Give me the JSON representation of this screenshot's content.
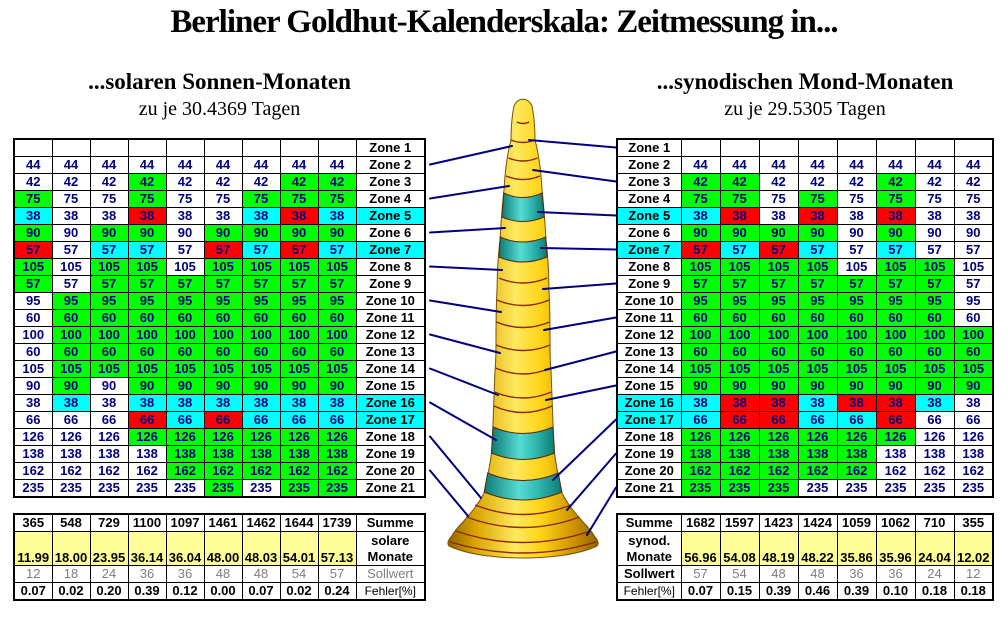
{
  "title": "Berliner Goldhut-Kalenderskala: Zeitmessung in...",
  "colors": {
    "codes": {
      "w": "#FFFFFF",
      "g": "#00FF00",
      "c": "#00FFFF",
      "r": "#FF0000"
    },
    "summary_yellow": "#FFFF99",
    "grid_number": "#00007F",
    "connector": "#000080",
    "cone_gold": "#FFD020",
    "cone_teal": "#2FB8B0"
  },
  "left_panel": {
    "heading": "...solaren Sonnen-Monaten",
    "subheading": "zu je 30.4369 Tagen",
    "rows": [
      {
        "zone": "Zone 1",
        "zone_bg": "w",
        "value": "",
        "bgs": "wwwwwwwww"
      },
      {
        "zone": "Zone 2",
        "zone_bg": "w",
        "value": "44",
        "bgs": "wwwwwwwww"
      },
      {
        "zone": "Zone 3",
        "zone_bg": "w",
        "value": "42",
        "bgs": "wwwgwwwgg"
      },
      {
        "zone": "Zone 4",
        "zone_bg": "w",
        "value": "75",
        "bgs": "gwwgwwggg"
      },
      {
        "zone": "Zone 5",
        "zone_bg": "c",
        "value": "38",
        "bgs": "cwwrwwcrc"
      },
      {
        "zone": "Zone 6",
        "zone_bg": "w",
        "value": "90",
        "bgs": "gwggwgggg"
      },
      {
        "zone": "Zone 7",
        "zone_bg": "c",
        "value": "57",
        "bgs": "rwccwrcrc"
      },
      {
        "zone": "Zone 8",
        "zone_bg": "w",
        "value": "105",
        "bgs": "gwggwgggg"
      },
      {
        "zone": "Zone 9",
        "zone_bg": "w",
        "value": "57",
        "bgs": "gwggggggg"
      },
      {
        "zone": "Zone 10",
        "zone_bg": "w",
        "value": "95",
        "bgs": "wgggggggg"
      },
      {
        "zone": "Zone 11",
        "zone_bg": "w",
        "value": "60",
        "bgs": "wgggggggg"
      },
      {
        "zone": "Zone 12",
        "zone_bg": "w",
        "value": "100",
        "bgs": "wgggggggg"
      },
      {
        "zone": "Zone 13",
        "zone_bg": "w",
        "value": "60",
        "bgs": "wgggggggg"
      },
      {
        "zone": "Zone 14",
        "zone_bg": "w",
        "value": "105",
        "bgs": "wgggggggg"
      },
      {
        "zone": "Zone 15",
        "zone_bg": "w",
        "value": "90",
        "bgs": "wgwgggggg"
      },
      {
        "zone": "Zone 16",
        "zone_bg": "c",
        "value": "38",
        "bgs": "wcwcccccc"
      },
      {
        "zone": "Zone 17",
        "zone_bg": "c",
        "value": "66",
        "bgs": "wwwrcrccc"
      },
      {
        "zone": "Zone 18",
        "zone_bg": "w",
        "value": "126",
        "bgs": "wwwgggggg"
      },
      {
        "zone": "Zone 19",
        "zone_bg": "w",
        "value": "138",
        "bgs": "wwwwggggg"
      },
      {
        "zone": "Zone 20",
        "zone_bg": "w",
        "value": "162",
        "bgs": "wwwwggggg"
      },
      {
        "zone": "Zone 21",
        "zone_bg": "w",
        "value": "235",
        "bgs": "wwwwwgwgg"
      }
    ],
    "summary": {
      "summe_label": "Summe",
      "summe_values": [
        "365",
        "548",
        "729",
        "1100",
        "1097",
        "1461",
        "1462",
        "1644",
        "1739"
      ],
      "monate_label_line1": "solare",
      "monate_label_line2": "Monate",
      "monate_values": [
        "11.99",
        "18.00",
        "23.95",
        "36.14",
        "36.04",
        "48.00",
        "48.03",
        "54.01",
        "57.13"
      ],
      "sollwert_label": "Sollwert",
      "sollwert_values": [
        "12",
        "18",
        "24",
        "36",
        "36",
        "48",
        "48",
        "54",
        "57"
      ],
      "fehler_label": "Fehler[%]",
      "fehler_values": [
        "0.07",
        "0.02",
        "0.20",
        "0.39",
        "0.12",
        "0.00",
        "0.07",
        "0.02",
        "0.24"
      ]
    }
  },
  "right_panel": {
    "heading": "...synodischen Mond-Monaten",
    "subheading": "zu je 29.5305 Tagen",
    "rows": [
      {
        "zone": "Zone 1",
        "zone_bg": "w",
        "value": "",
        "bgs": "wwwwwwww"
      },
      {
        "zone": "Zone 2",
        "zone_bg": "w",
        "value": "44",
        "bgs": "wwwwwwww"
      },
      {
        "zone": "Zone 3",
        "zone_bg": "w",
        "value": "42",
        "bgs": "ggwwwgww"
      },
      {
        "zone": "Zone 4",
        "zone_bg": "w",
        "value": "75",
        "bgs": "ggwgwgww"
      },
      {
        "zone": "Zone 5",
        "zone_bg": "c",
        "value": "38",
        "bgs": "crwrwrww"
      },
      {
        "zone": "Zone 6",
        "zone_bg": "w",
        "value": "90",
        "bgs": "ggggwgww"
      },
      {
        "zone": "Zone 7",
        "zone_bg": "c",
        "value": "57",
        "bgs": "rcrcwcww"
      },
      {
        "zone": "Zone 8",
        "zone_bg": "w",
        "value": "105",
        "bgs": "ggggwggw"
      },
      {
        "zone": "Zone 9",
        "zone_bg": "w",
        "value": "57",
        "bgs": "gggggggw"
      },
      {
        "zone": "Zone 10",
        "zone_bg": "w",
        "value": "95",
        "bgs": "gggggggw"
      },
      {
        "zone": "Zone 11",
        "zone_bg": "w",
        "value": "60",
        "bgs": "gggggggw"
      },
      {
        "zone": "Zone 12",
        "zone_bg": "w",
        "value": "100",
        "bgs": "gggggggg"
      },
      {
        "zone": "Zone 13",
        "zone_bg": "w",
        "value": "60",
        "bgs": "gggggggg"
      },
      {
        "zone": "Zone 14",
        "zone_bg": "w",
        "value": "105",
        "bgs": "gggggggg"
      },
      {
        "zone": "Zone 15",
        "zone_bg": "w",
        "value": "90",
        "bgs": "gggggggg"
      },
      {
        "zone": "Zone 16",
        "zone_bg": "c",
        "value": "38",
        "bgs": "crrcrrcw"
      },
      {
        "zone": "Zone 17",
        "zone_bg": "c",
        "value": "66",
        "bgs": "crrccrww"
      },
      {
        "zone": "Zone 18",
        "zone_bg": "w",
        "value": "126",
        "bgs": "ggggggww"
      },
      {
        "zone": "Zone 19",
        "zone_bg": "w",
        "value": "138",
        "bgs": "gggggwww"
      },
      {
        "zone": "Zone 20",
        "zone_bg": "w",
        "value": "162",
        "bgs": "gggggwww"
      },
      {
        "zone": "Zone 21",
        "zone_bg": "w",
        "value": "235",
        "bgs": "gggwwwww"
      }
    ],
    "summary": {
      "summe_label": "Summe",
      "summe_values": [
        "1682",
        "1597",
        "1423",
        "1424",
        "1059",
        "1062",
        "710",
        "355"
      ],
      "monate_label_line1": "synod.",
      "monate_label_line2": "Monate",
      "monate_values": [
        "56.96",
        "54.08",
        "48.19",
        "48.22",
        "35.86",
        "35.96",
        "24.04",
        "12.02"
      ],
      "sollwert_label": "Sollwert",
      "sollwert_values": [
        "57",
        "54",
        "48",
        "48",
        "36",
        "36",
        "24",
        "12"
      ],
      "fehler_label": "Fehler[%]",
      "fehler_values": [
        "0.07",
        "0.15",
        "0.39",
        "0.46",
        "0.39",
        "0.10",
        "0.18",
        "0.18"
      ]
    }
  },
  "cone": {
    "name": "Berliner Goldhut (gebänderter Kegel)"
  }
}
